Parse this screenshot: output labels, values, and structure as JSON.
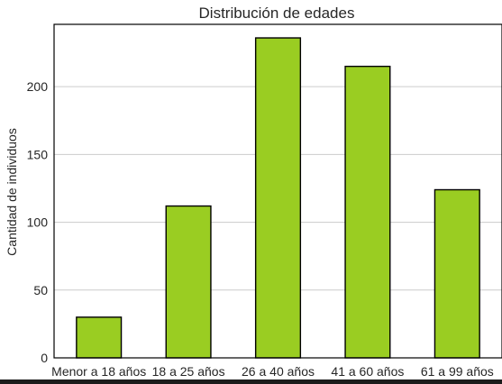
{
  "chart_data": {
    "type": "bar",
    "title": "Distribución de edades",
    "xlabel": "",
    "ylabel": "Cantidad de individuos",
    "categories": [
      "Menor a 18 años",
      "18 a 25 años",
      "26 a 40 años",
      "41 a 60 años",
      "61 a 99 años"
    ],
    "values": [
      30,
      112,
      236,
      215,
      124
    ],
    "ylim": [
      0,
      246
    ],
    "yticks": [
      0,
      50,
      100,
      150,
      200
    ],
    "grid": "y",
    "bar_color": "#9ACD22",
    "edge_color": "#000000",
    "grid_color": "#cccccc"
  }
}
